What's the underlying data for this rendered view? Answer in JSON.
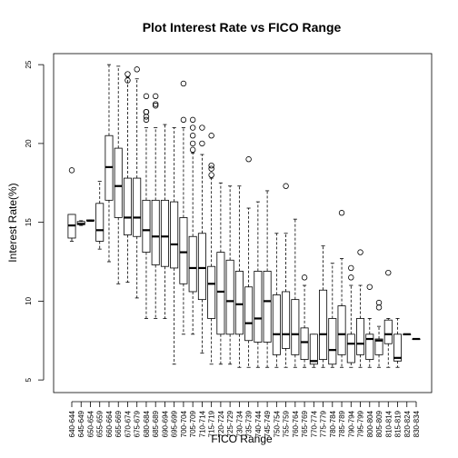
{
  "chart_data": {
    "type": "boxplot",
    "title": "Plot Interest Rate vs FICO Range",
    "xlabel": "FICO Range",
    "ylabel": "Interest Rate(%)",
    "ylim": [
      5,
      25.5
    ],
    "yticks": [
      5,
      10,
      15,
      20,
      25
    ],
    "boxes": [
      {
        "category": "640-644",
        "min": 13.8,
        "q1": 14.0,
        "median": 14.8,
        "q3": 15.5,
        "max": 15.5,
        "outliers": [
          18.3
        ]
      },
      {
        "category": "645-649",
        "min": 14.8,
        "q1": 14.85,
        "median": 14.9,
        "q3": 15.05,
        "max": 15.1,
        "outliers": []
      },
      {
        "category": "650-654",
        "min": 15.1,
        "q1": 15.1,
        "median": 15.1,
        "q3": 15.15,
        "max": 15.15,
        "outliers": []
      },
      {
        "category": "655-659",
        "min": 13.3,
        "q1": 13.8,
        "median": 14.5,
        "q3": 16.2,
        "max": 17.6,
        "outliers": []
      },
      {
        "category": "660-664",
        "min": 12.5,
        "q1": 16.4,
        "median": 18.5,
        "q3": 20.5,
        "max": 25.0,
        "outliers": []
      },
      {
        "category": "665-669",
        "min": 11.1,
        "q1": 15.3,
        "median": 17.3,
        "q3": 19.7,
        "max": 24.9,
        "outliers": []
      },
      {
        "category": "670-674",
        "min": 11.2,
        "q1": 14.2,
        "median": 15.3,
        "q3": 17.8,
        "max": 24.2,
        "outliers": [
          24.0,
          24.4
        ]
      },
      {
        "category": "675-679",
        "min": 10.2,
        "q1": 14.1,
        "median": 15.3,
        "q3": 17.8,
        "max": 24.1,
        "outliers": [
          24.7
        ]
      },
      {
        "category": "680-684",
        "min": 8.9,
        "q1": 13.1,
        "median": 14.5,
        "q3": 16.4,
        "max": 21.0,
        "outliers": [
          21.5,
          21.7,
          22.0,
          22.0,
          23.0
        ]
      },
      {
        "category": "685-689",
        "min": 8.9,
        "q1": 12.3,
        "median": 14.1,
        "q3": 16.4,
        "max": 21.0,
        "outliers": [
          22.4,
          22.5,
          23.0
        ]
      },
      {
        "category": "690-694",
        "min": 8.9,
        "q1": 12.2,
        "median": 14.1,
        "q3": 16.4,
        "max": 21.2,
        "outliers": []
      },
      {
        "category": "695-699",
        "min": 6.0,
        "q1": 12.1,
        "median": 13.6,
        "q3": 16.3,
        "max": 21.0,
        "outliers": []
      },
      {
        "category": "700-704",
        "min": 7.9,
        "q1": 11.1,
        "median": 13.1,
        "q3": 15.3,
        "max": 21.0,
        "outliers": [
          21.5,
          23.8
        ]
      },
      {
        "category": "705-709",
        "min": 7.9,
        "q1": 10.6,
        "median": 12.1,
        "q3": 14.1,
        "max": 19.4,
        "outliers": [
          19.6,
          20.0,
          20.5,
          21.0,
          21.5
        ]
      },
      {
        "category": "710-714",
        "min": 6.7,
        "q1": 10.1,
        "median": 12.1,
        "q3": 14.3,
        "max": 19.3,
        "outliers": [
          20.0,
          21.0
        ]
      },
      {
        "category": "715-719",
        "min": 6.0,
        "q1": 8.9,
        "median": 11.1,
        "q3": 12.2,
        "max": 17.8,
        "outliers": [
          18.0,
          18.4,
          18.6,
          20.5
        ]
      },
      {
        "category": "720-724",
        "min": 6.0,
        "q1": 7.9,
        "median": 10.6,
        "q3": 13.1,
        "max": 17.5,
        "outliers": []
      },
      {
        "category": "725-729",
        "min": 6.0,
        "q1": 7.9,
        "median": 10.0,
        "q3": 12.6,
        "max": 17.3,
        "outliers": []
      },
      {
        "category": "730-734",
        "min": 5.8,
        "q1": 7.9,
        "median": 9.8,
        "q3": 11.9,
        "max": 17.3,
        "outliers": []
      },
      {
        "category": "735-739",
        "min": 5.8,
        "q1": 7.5,
        "median": 8.6,
        "q3": 10.9,
        "max": 15.9,
        "outliers": [
          19.0
        ]
      },
      {
        "category": "740-744",
        "min": 5.8,
        "q1": 7.4,
        "median": 8.9,
        "q3": 11.9,
        "max": 16.3,
        "outliers": []
      },
      {
        "category": "745-749",
        "min": 5.8,
        "q1": 7.4,
        "median": 10.0,
        "q3": 11.9,
        "max": 17.0,
        "outliers": []
      },
      {
        "category": "750-754",
        "min": 5.8,
        "q1": 6.6,
        "median": 7.9,
        "q3": 10.4,
        "max": 14.3,
        "outliers": []
      },
      {
        "category": "755-759",
        "min": 5.8,
        "q1": 7.0,
        "median": 7.9,
        "q3": 10.6,
        "max": 14.3,
        "outliers": [
          17.3
        ]
      },
      {
        "category": "760-764",
        "min": 5.8,
        "q1": 6.6,
        "median": 7.9,
        "q3": 10.1,
        "max": 15.2,
        "outliers": []
      },
      {
        "category": "765-769",
        "min": 5.8,
        "q1": 6.3,
        "median": 7.4,
        "q3": 8.3,
        "max": 11.0,
        "outliers": [
          11.5
        ]
      },
      {
        "category": "770-774",
        "min": 5.8,
        "q1": 6.0,
        "median": 6.2,
        "q3": 7.9,
        "max": 7.9,
        "outliers": []
      },
      {
        "category": "775-779",
        "min": 5.8,
        "q1": 6.3,
        "median": 7.9,
        "q3": 10.7,
        "max": 13.5,
        "outliers": []
      },
      {
        "category": "780-784",
        "min": 5.8,
        "q1": 6.0,
        "median": 6.9,
        "q3": 8.9,
        "max": 12.4,
        "outliers": []
      },
      {
        "category": "785-789",
        "min": 5.8,
        "q1": 6.6,
        "median": 7.9,
        "q3": 9.7,
        "max": 12.7,
        "outliers": [
          15.6
        ]
      },
      {
        "category": "790-794",
        "min": 5.8,
        "q1": 6.1,
        "median": 7.3,
        "q3": 7.9,
        "max": 11.0,
        "outliers": [
          11.5,
          12.1
        ]
      },
      {
        "category": "795-799",
        "min": 5.8,
        "q1": 6.6,
        "median": 7.3,
        "q3": 8.9,
        "max": 11.0,
        "outliers": [
          13.1
        ]
      },
      {
        "category": "800-804",
        "min": 5.8,
        "q1": 6.3,
        "median": 7.6,
        "q3": 7.9,
        "max": 8.9,
        "outliers": [
          10.9
        ]
      },
      {
        "category": "805-809",
        "min": 5.8,
        "q1": 6.6,
        "median": 7.5,
        "q3": 7.6,
        "max": 8.4,
        "outliers": [
          9.6,
          9.9
        ]
      },
      {
        "category": "810-814",
        "min": 5.8,
        "q1": 7.3,
        "median": 7.9,
        "q3": 8.8,
        "max": 8.9,
        "outliers": [
          11.8
        ]
      },
      {
        "category": "815-819",
        "min": 5.8,
        "q1": 6.2,
        "median": 6.4,
        "q3": 7.9,
        "max": 8.9,
        "outliers": []
      },
      {
        "category": "820-824",
        "min": 7.9,
        "q1": 7.9,
        "median": 7.9,
        "q3": 7.9,
        "max": 7.9,
        "outliers": []
      },
      {
        "category": "830-834",
        "min": 7.6,
        "q1": 7.6,
        "median": 7.6,
        "q3": 7.6,
        "max": 7.6,
        "outliers": []
      }
    ]
  }
}
